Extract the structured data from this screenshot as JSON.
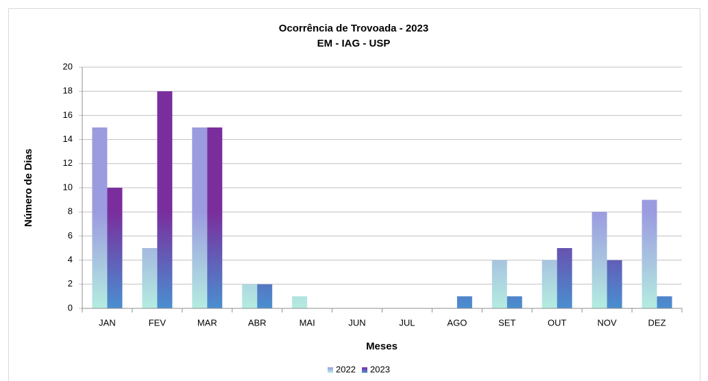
{
  "chart_data": {
    "type": "bar",
    "title": "Ocorrência de Trovoada - 2023",
    "subtitle": "EM - IAG - USP",
    "x_label": "Meses",
    "y_label": "Número de Dias",
    "categories": [
      "JAN",
      "FEV",
      "MAR",
      "ABR",
      "MAI",
      "JUN",
      "JUL",
      "AGO",
      "SET",
      "OUT",
      "NOV",
      "DEZ"
    ],
    "series": [
      {
        "name": "2022",
        "color": "#9b9be0",
        "values": [
          15,
          5,
          15,
          2,
          1,
          0,
          0,
          0,
          4,
          4,
          8,
          9
        ]
      },
      {
        "name": "2023",
        "color": "#7a2e9e",
        "values": [
          10,
          18,
          15,
          2,
          0,
          0,
          0,
          1,
          1,
          5,
          4,
          1
        ]
      }
    ],
    "ylim": [
      0,
      20
    ],
    "yticks": [
      0,
      2,
      4,
      6,
      8,
      10,
      12,
      14,
      16,
      18,
      20
    ],
    "grid": true,
    "legend": "bottom"
  }
}
